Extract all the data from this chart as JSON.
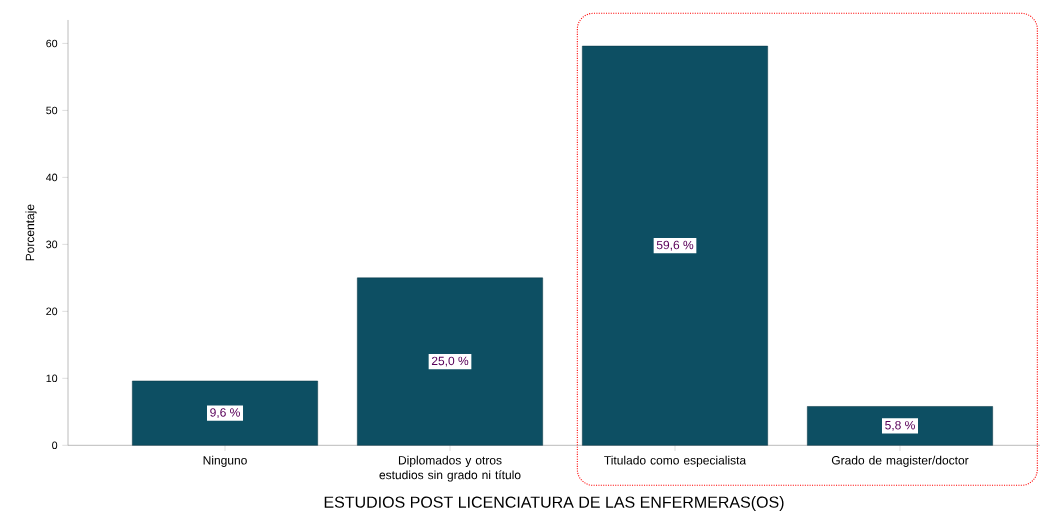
{
  "chart_data": {
    "type": "bar",
    "xlabel": "ESTUDIOS POST LICENCIATURA DE LAS ENFERMERAS(OS)",
    "ylabel": "Porcentaje",
    "categories": [
      "Ninguno",
      "Diplomados y otros estudios sin grado ni título",
      "Titulado como especialista",
      "Grado de magister/doctor"
    ],
    "values": [
      9.6,
      25.0,
      59.6,
      5.8
    ],
    "value_labels": [
      "9,6 %",
      "25,0 %",
      "59,6 %",
      "5,8 %"
    ],
    "color": "#0d4f63",
    "ylim": [
      0,
      63.5
    ],
    "yticks": [
      0,
      10,
      20,
      30,
      40,
      50,
      60
    ]
  }
}
